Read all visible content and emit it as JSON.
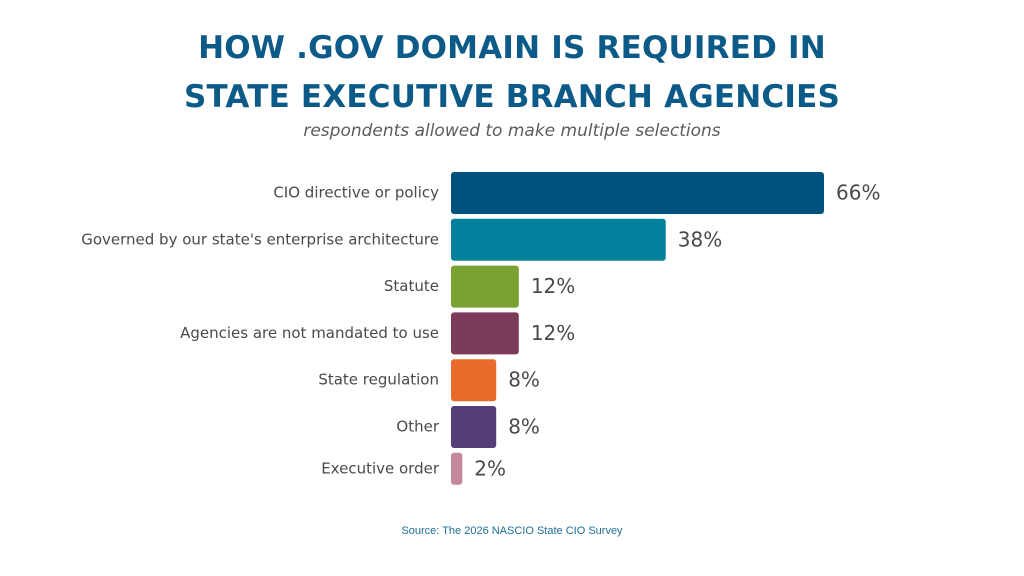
{
  "title": {
    "line1": "HOW .GOV DOMAIN IS REQUIRED IN",
    "line2": "STATE EXECUTIVE BRANCH AGENCIES"
  },
  "subtitle": "respondents allowed to make multiple selections",
  "source": "Source: The 2026 NASCIO State CIO Survey",
  "chart_data": {
    "type": "bar",
    "orientation": "horizontal",
    "title": "HOW .GOV DOMAIN IS REQUIRED IN STATE EXECUTIVE BRANCH AGENCIES",
    "subtitle": "respondents allowed to make multiple selections",
    "xlabel": "",
    "ylabel": "",
    "grid": false,
    "legend": "none",
    "value_suffix": "%",
    "xlim": [
      0,
      66
    ],
    "categories": [
      "CIO directive or policy",
      "Governed by our state's enterprise architecture",
      "Statute",
      "Agencies are not mandated to use",
      "State regulation",
      "Other",
      "Executive order"
    ],
    "values": [
      66,
      38,
      12,
      12,
      8,
      8,
      2
    ],
    "data_labels": [
      "66%",
      "38%",
      "12%",
      "12%",
      "8%",
      "8%",
      "2%"
    ],
    "colors": [
      "#02527f",
      "#06819d",
      "#79a232",
      "#7d3b5a",
      "#e86b2c",
      "#533e78",
      "#c4879d"
    ]
  }
}
